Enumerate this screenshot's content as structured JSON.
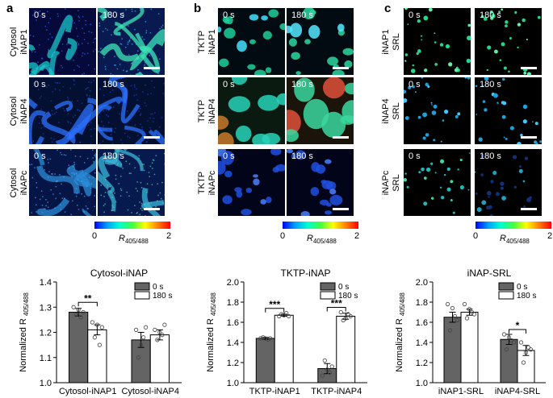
{
  "panels": [
    {
      "letter": "a",
      "rows": [
        {
          "label": [
            "Cytosol",
            "iNAP1"
          ],
          "left_time": "0 s",
          "right_time": "180 s"
        },
        {
          "label": [
            "Cytosol",
            "iNAP4"
          ],
          "left_time": "0 s",
          "right_time": "180 s"
        },
        {
          "label": [
            "Cytosol",
            "iNAPc"
          ],
          "left_time": "0 s",
          "right_time": "180 s"
        }
      ],
      "colorbar": {
        "min": "0",
        "max": "2",
        "unit_main": "R",
        "unit_sub": "405/488"
      }
    },
    {
      "letter": "b",
      "rows": [
        {
          "label": [
            "TKTP",
            "iNAP1"
          ],
          "left_time": "0 s",
          "right_time": "180 s"
        },
        {
          "label": [
            "TKTP",
            "iNAP4"
          ],
          "left_time": "0 s",
          "right_time": "180 s"
        },
        {
          "label": [
            "TKTP",
            "iNAPc"
          ],
          "left_time": "0 s",
          "right_time": "180 s"
        }
      ],
      "colorbar": {
        "min": "0",
        "max": "2",
        "unit_main": "R",
        "unit_sub": "405/488"
      }
    },
    {
      "letter": "c",
      "rows": [
        {
          "label": [
            "iNAP1",
            "SRL"
          ],
          "left_time": "0 s",
          "right_time": "180 s"
        },
        {
          "label": [
            "iNAP4",
            "SRL"
          ],
          "left_time": "0 s",
          "right_time": "180 s"
        },
        {
          "label": [
            "iNAPc",
            "SRL"
          ],
          "left_time": "0 s",
          "right_time": "180 s"
        }
      ],
      "colorbar": {
        "min": "0",
        "max": "2",
        "unit_main": "R",
        "unit_sub": "405/488"
      }
    }
  ],
  "colors": {
    "bar_0s": "#646464",
    "bar_180s": "#ffffff",
    "edge": "#000000"
  },
  "chart_data": [
    {
      "type": "bar",
      "title": "Cytosol-iNAP",
      "ylabel_main": "Normalized R",
      "ylabel_sub": "405/488",
      "ylim": [
        1.0,
        1.4
      ],
      "yticks": [
        "1.0",
        "1.1",
        "1.2",
        "1.3",
        "1.4"
      ],
      "categories": [
        "Cytosol-iNAP1",
        "Cytosol-iNAP4"
      ],
      "series": [
        {
          "name": "0 s",
          "values": [
            1.28,
            1.17
          ],
          "errors": [
            0.015,
            0.03
          ],
          "points": [
            [
              1.3,
              1.27,
              1.29,
              1.26,
              1.28
            ],
            [
              1.21,
              1.1,
              1.15,
              1.18,
              1.22
            ]
          ]
        },
        {
          "name": "180 s",
          "values": [
            1.21,
            1.19
          ],
          "errors": [
            0.02,
            0.02
          ],
          "points": [
            [
              1.24,
              1.18,
              1.23,
              1.15,
              1.22
            ],
            [
              1.21,
              1.17,
              1.2,
              1.19,
              1.23
            ]
          ]
        }
      ],
      "significance": [
        "**",
        ""
      ],
      "legend_position": "top-right"
    },
    {
      "type": "bar",
      "title": "TKTP-iNAP",
      "ylabel_main": "Normalized R",
      "ylabel_sub": "405/488",
      "ylim": [
        1.0,
        2.0
      ],
      "yticks": [
        "1.0",
        "1.2",
        "1.4",
        "1.6",
        "1.8",
        "2.0"
      ],
      "categories": [
        "TKTP-iNAP1",
        "TKTP-iNAP4"
      ],
      "series": [
        {
          "name": "0 s",
          "values": [
            1.44,
            1.14
          ],
          "errors": [
            0.01,
            0.05
          ],
          "points": [
            [
              1.44,
              1.45,
              1.44,
              1.43,
              1.44
            ],
            [
              1.07,
              1.22,
              1.13,
              1.1,
              1.16
            ]
          ]
        },
        {
          "name": "180 s",
          "values": [
            1.67,
            1.66
          ],
          "errors": [
            0.01,
            0.03
          ],
          "points": [
            [
              1.66,
              1.68,
              1.67,
              1.69,
              1.66
            ],
            [
              1.7,
              1.62,
              1.64,
              1.68,
              1.66
            ]
          ]
        }
      ],
      "significance": [
        "***",
        "***"
      ],
      "legend_position": "top-right"
    },
    {
      "type": "bar",
      "title": "iNAP-SRL",
      "ylabel_main": "Normalized R",
      "ylabel_sub": "405/488",
      "ylim": [
        1.0,
        2.0
      ],
      "yticks": [
        "1.0",
        "1.2",
        "1.4",
        "1.6",
        "1.8",
        "2.0"
      ],
      "categories": [
        "iNAP1-SRL",
        "iNAP4-SRL"
      ],
      "series": [
        {
          "name": "0 s",
          "values": [
            1.65,
            1.43
          ],
          "errors": [
            0.05,
            0.05
          ],
          "points": [
            [
              1.78,
              1.52,
              1.74,
              1.66,
              1.62
            ],
            [
              1.48,
              1.33,
              1.45,
              1.42,
              1.4
            ]
          ]
        },
        {
          "name": "180 s",
          "values": [
            1.7,
            1.32
          ],
          "errors": [
            0.03,
            0.05
          ],
          "points": [
            [
              1.78,
              1.64,
              1.73,
              1.7,
              1.68
            ],
            [
              1.4,
              1.2,
              1.3,
              1.35,
              1.33
            ]
          ]
        }
      ],
      "significance": [
        "",
        "*"
      ],
      "legend_position": "top-right"
    }
  ]
}
